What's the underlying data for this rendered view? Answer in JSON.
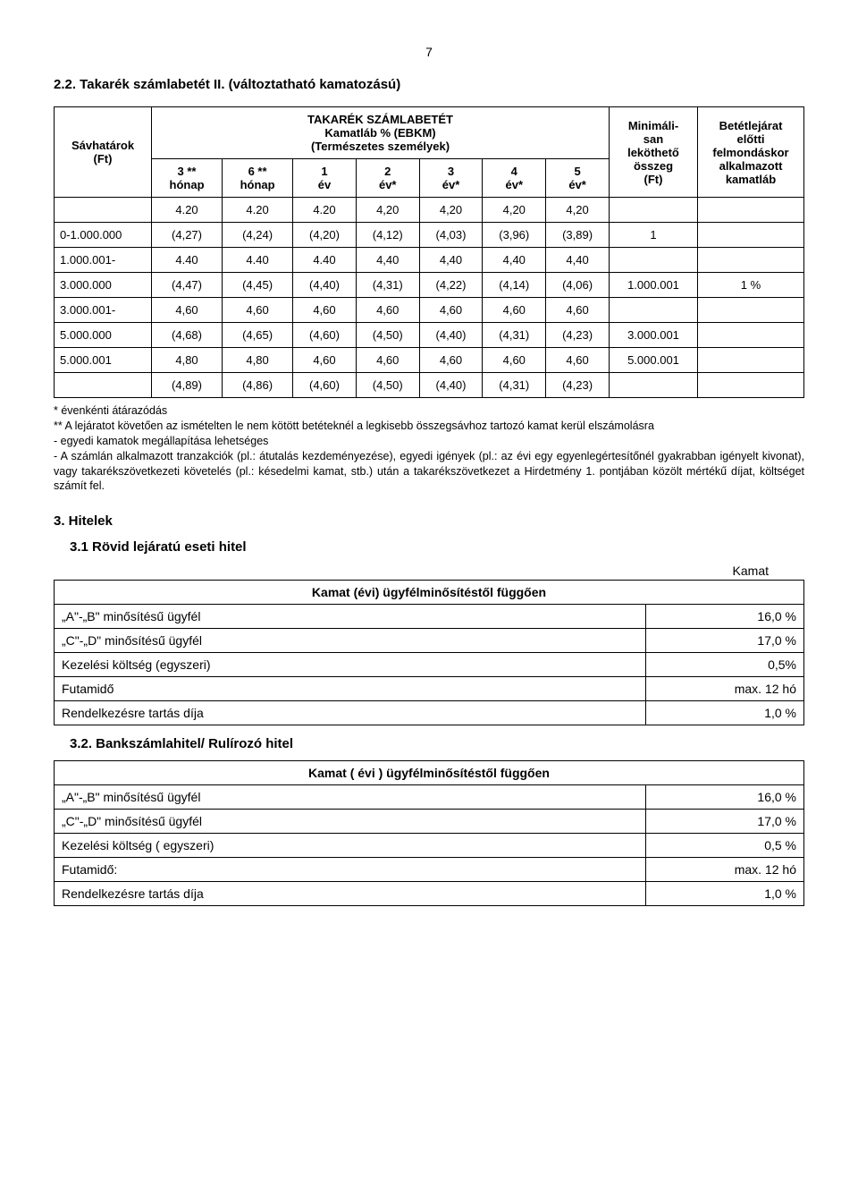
{
  "page_number": "7",
  "section_title": "2.2. Takarék számlabetét II. (változtatható kamatozású)",
  "header": {
    "col1": "Sávhatárok\n(Ft)",
    "table_title": "TAKARÉK SZÁMLABETÉT\nKamatláb % (EBKM)\n(Természetes személyek)",
    "col_min": "Minimáli-\nsan\nleköthető\nösszeg\n(Ft)",
    "col_last": "Betétlejárat\nelőtti\nfelmondáskor\nalkalmazott\nkamatláb",
    "sub": [
      "3 **\nhónap",
      "6 **\nhónap",
      "1\név",
      "2\név*",
      "3\név*",
      "4\név*",
      "5\név*"
    ]
  },
  "rows": [
    {
      "label": "",
      "cells": [
        "4.20",
        "4.20",
        "4.20",
        "4,20",
        "4,20",
        "4,20",
        "4,20"
      ],
      "min": "",
      "last": ""
    },
    {
      "label": "0-1.000.000",
      "cells": [
        "(4,27)",
        "(4,24)",
        "(4,20)",
        "(4,12)",
        "(4,03)",
        "(3,96)",
        "(3,89)"
      ],
      "min": "1",
      "last": ""
    },
    {
      "label": "1.000.001-",
      "cells": [
        "4.40",
        "4.40",
        "4.40",
        "4,40",
        "4,40",
        "4,40",
        "4,40"
      ],
      "min": "",
      "last": ""
    },
    {
      "label": "3.000.000",
      "cells": [
        "(4,47)",
        "(4,45)",
        "(4,40)",
        "(4,31)",
        "(4,22)",
        "(4,14)",
        "(4,06)"
      ],
      "min": "1.000.001",
      "last": "1 %"
    },
    {
      "label": "3.000.001-",
      "cells": [
        "4,60",
        "4,60",
        "4,60",
        "4,60",
        "4,60",
        "4,60",
        "4,60"
      ],
      "min": "",
      "last": ""
    },
    {
      "label": "5.000.000",
      "cells": [
        "(4,68)",
        "(4,65)",
        "(4,60)",
        "(4,50)",
        "(4,40)",
        "(4,31)",
        "(4,23)"
      ],
      "min": "3.000.001",
      "last": ""
    },
    {
      "label": "5.000.001",
      "cells": [
        "4,80",
        "4,80",
        "4,60",
        "4,60",
        "4,60",
        "4,60",
        "4,60"
      ],
      "min": "5.000.001",
      "last": ""
    },
    {
      "label": "",
      "cells": [
        "(4,89)",
        "(4,86)",
        "(4,60)",
        "(4,50)",
        "(4,40)",
        "(4,31)",
        "(4,23)"
      ],
      "min": "",
      "last": ""
    }
  ],
  "footnote": "* évenkénti átárazódás\n** A lejáratot követően az ismételten le nem kötött betéteknél a legkisebb összegsávhoz tartozó kamat kerül elszámolásra\n- egyedi kamatok megállapítása lehetséges\n- A számlán alkalmazott tranzakciók (pl.: átutalás kezdeményezése), egyedi igények (pl.: az évi egy egyenlegértesítőnél gyakrabban igényelt kivonat), vagy takarékszövetkezeti követelés (pl.: késedelmi kamat, stb.) után a takarékszövetkezet a Hirdetmény 1. pontjában közölt mértékű díjat, költséget számít fel.",
  "hitelek_title": "3. Hitelek",
  "sub31_title": "3.1 Rövid lejáratú eseti hitel",
  "kamat_label": "Kamat",
  "table31": {
    "title": "Kamat (évi) ügyfélminősítéstől függően",
    "rows": [
      {
        "l": "„A\"-„B\" minősítésű ügyfél",
        "r": "16,0 %"
      },
      {
        "l": "„C\"-„D\" minősítésű ügyfél",
        "r": "17,0 %"
      },
      {
        "l": "Kezelési költség (egyszeri)",
        "r": "0,5%"
      },
      {
        "l": "Futamidő",
        "r": "max. 12 hó"
      },
      {
        "l": "Rendelkezésre tartás díja",
        "r": "1,0 %"
      }
    ]
  },
  "sub32_title": "3.2. Bankszámlahitel/ Rulírozó hitel",
  "table32": {
    "title": "Kamat ( évi ) ügyfélminősítéstől függően",
    "rows": [
      {
        "l": "„A\"-„B\" minősítésű ügyfél",
        "r": "16,0 %"
      },
      {
        "l": "„C\"-„D\" minősítésű ügyfél",
        "r": "17,0 %"
      },
      {
        "l": "Kezelési költség ( egyszeri)",
        "r": "0,5 %"
      },
      {
        "l": "Futamidő:",
        "r": "max. 12 hó"
      },
      {
        "l": "Rendelkezésre tartás díja",
        "r": "1,0 %"
      }
    ]
  }
}
